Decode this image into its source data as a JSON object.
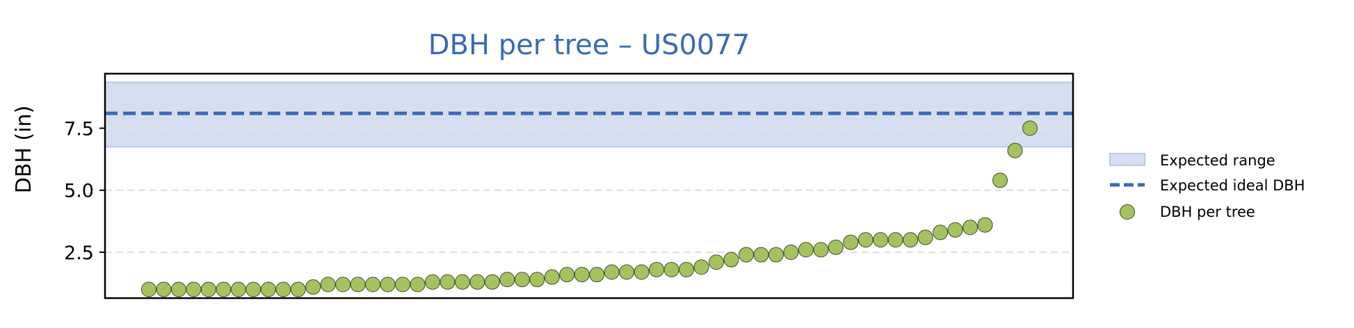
{
  "chart_data": {
    "type": "scatter",
    "title": "DBH per tree – US0077",
    "ylabel": "DBH (in)",
    "xlabel": "",
    "ylim": [
      0.65,
      9.7
    ],
    "yticks": [
      2.5,
      5.0,
      7.5
    ],
    "ytick_labels": [
      "2.5",
      "5.0",
      "7.5"
    ],
    "grid": "horizontal dashed",
    "legend_position": "right",
    "expected_range": {
      "label": "Expected range",
      "low": 6.75,
      "high": 9.35
    },
    "expected_ideal": {
      "label": "Expected ideal DBH",
      "value": 8.1
    },
    "series": [
      {
        "name": "DBH per tree",
        "y": [
          1.0,
          1.0,
          1.0,
          1.0,
          1.0,
          1.0,
          1.0,
          1.0,
          1.0,
          1.0,
          1.0,
          1.1,
          1.2,
          1.2,
          1.2,
          1.2,
          1.2,
          1.2,
          1.2,
          1.3,
          1.3,
          1.3,
          1.3,
          1.3,
          1.4,
          1.4,
          1.4,
          1.5,
          1.6,
          1.6,
          1.6,
          1.7,
          1.7,
          1.7,
          1.8,
          1.8,
          1.8,
          1.9,
          2.1,
          2.2,
          2.4,
          2.4,
          2.4,
          2.5,
          2.6,
          2.6,
          2.7,
          2.9,
          3.0,
          3.0,
          3.0,
          3.0,
          3.1,
          3.3,
          3.4,
          3.5,
          3.6,
          5.4,
          6.6,
          7.5
        ]
      }
    ],
    "colors": {
      "title": "#3a6ab5",
      "points": "#a5c261",
      "point_edge": "#3f4a26",
      "ideal_line": "#3a6ab5",
      "range_fill": "#d6dff1",
      "range_edge": "#b7c8eb",
      "grid": "#e3e3e3"
    }
  }
}
